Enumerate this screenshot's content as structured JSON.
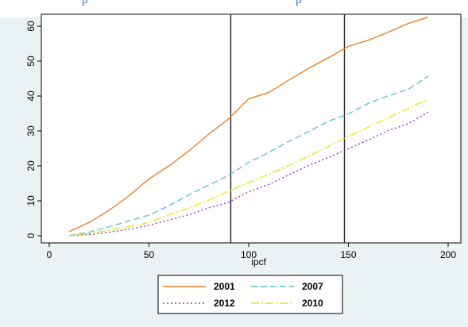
{
  "header": {
    "fragment_left": "p",
    "fragment_right": "p"
  },
  "chart_data": {
    "type": "line",
    "xlabel": "ipcf",
    "ylabel": "",
    "title": "",
    "xlim": [
      0,
      200
    ],
    "ylim": [
      0,
      65
    ],
    "xticks": [
      0,
      50,
      100,
      150,
      200
    ],
    "yticks": [
      0,
      10,
      20,
      30,
      40,
      50,
      60
    ],
    "vlines": [
      91,
      148
    ],
    "grid": false,
    "legend_position": "bottom",
    "series": [
      {
        "name": "2001",
        "color": "#f07e26",
        "dash": "solid",
        "points": [
          [
            10,
            1.2
          ],
          [
            20,
            3.8
          ],
          [
            30,
            7.3
          ],
          [
            40,
            11.4
          ],
          [
            50,
            16.3
          ],
          [
            60,
            20.0
          ],
          [
            70,
            24.3
          ],
          [
            80,
            29.1
          ],
          [
            90,
            33.5
          ],
          [
            100,
            39.2
          ],
          [
            110,
            41.0
          ],
          [
            120,
            44.5
          ],
          [
            130,
            47.9
          ],
          [
            140,
            51.0
          ],
          [
            150,
            54.2
          ],
          [
            160,
            56.0
          ],
          [
            170,
            58.3
          ],
          [
            180,
            60.8
          ],
          [
            190,
            62.6
          ]
        ]
      },
      {
        "name": "2007",
        "color": "#5ec4d8",
        "dash": "8,4",
        "points": [
          [
            10,
            0.1
          ],
          [
            20,
            1.0
          ],
          [
            30,
            2.6
          ],
          [
            40,
            4.2
          ],
          [
            50,
            5.9
          ],
          [
            60,
            8.6
          ],
          [
            70,
            11.7
          ],
          [
            80,
            14.5
          ],
          [
            90,
            17.3
          ],
          [
            100,
            21.0
          ],
          [
            110,
            23.8
          ],
          [
            120,
            27.0
          ],
          [
            130,
            29.8
          ],
          [
            140,
            32.8
          ],
          [
            150,
            34.9
          ],
          [
            160,
            37.9
          ],
          [
            170,
            40.1
          ],
          [
            180,
            41.9
          ],
          [
            190,
            45.7
          ]
        ]
      },
      {
        "name": "2012",
        "color": "#9b30c6",
        "dash": "2,3",
        "points": [
          [
            10,
            0.0
          ],
          [
            20,
            0.3
          ],
          [
            30,
            1.0
          ],
          [
            40,
            1.9
          ],
          [
            50,
            3.0
          ],
          [
            60,
            4.5
          ],
          [
            70,
            6.0
          ],
          [
            80,
            8.0
          ],
          [
            90,
            9.6
          ],
          [
            100,
            12.6
          ],
          [
            110,
            14.7
          ],
          [
            120,
            17.4
          ],
          [
            130,
            20.1
          ],
          [
            140,
            22.4
          ],
          [
            150,
            24.9
          ],
          [
            160,
            27.4
          ],
          [
            170,
            30.1
          ],
          [
            180,
            32.1
          ],
          [
            190,
            35.4
          ]
        ]
      },
      {
        "name": "2010",
        "color": "#e6e61a",
        "dash": "10,3,2,3",
        "points": [
          [
            10,
            0.0
          ],
          [
            20,
            0.6
          ],
          [
            30,
            1.6
          ],
          [
            40,
            2.6
          ],
          [
            50,
            3.8
          ],
          [
            60,
            6.0
          ],
          [
            70,
            7.9
          ],
          [
            80,
            10.2
          ],
          [
            90,
            12.8
          ],
          [
            100,
            15.2
          ],
          [
            110,
            17.6
          ],
          [
            120,
            20.1
          ],
          [
            130,
            22.8
          ],
          [
            140,
            25.6
          ],
          [
            150,
            28.5
          ],
          [
            160,
            31.1
          ],
          [
            170,
            33.8
          ],
          [
            180,
            36.5
          ],
          [
            190,
            39.1
          ]
        ]
      }
    ]
  }
}
